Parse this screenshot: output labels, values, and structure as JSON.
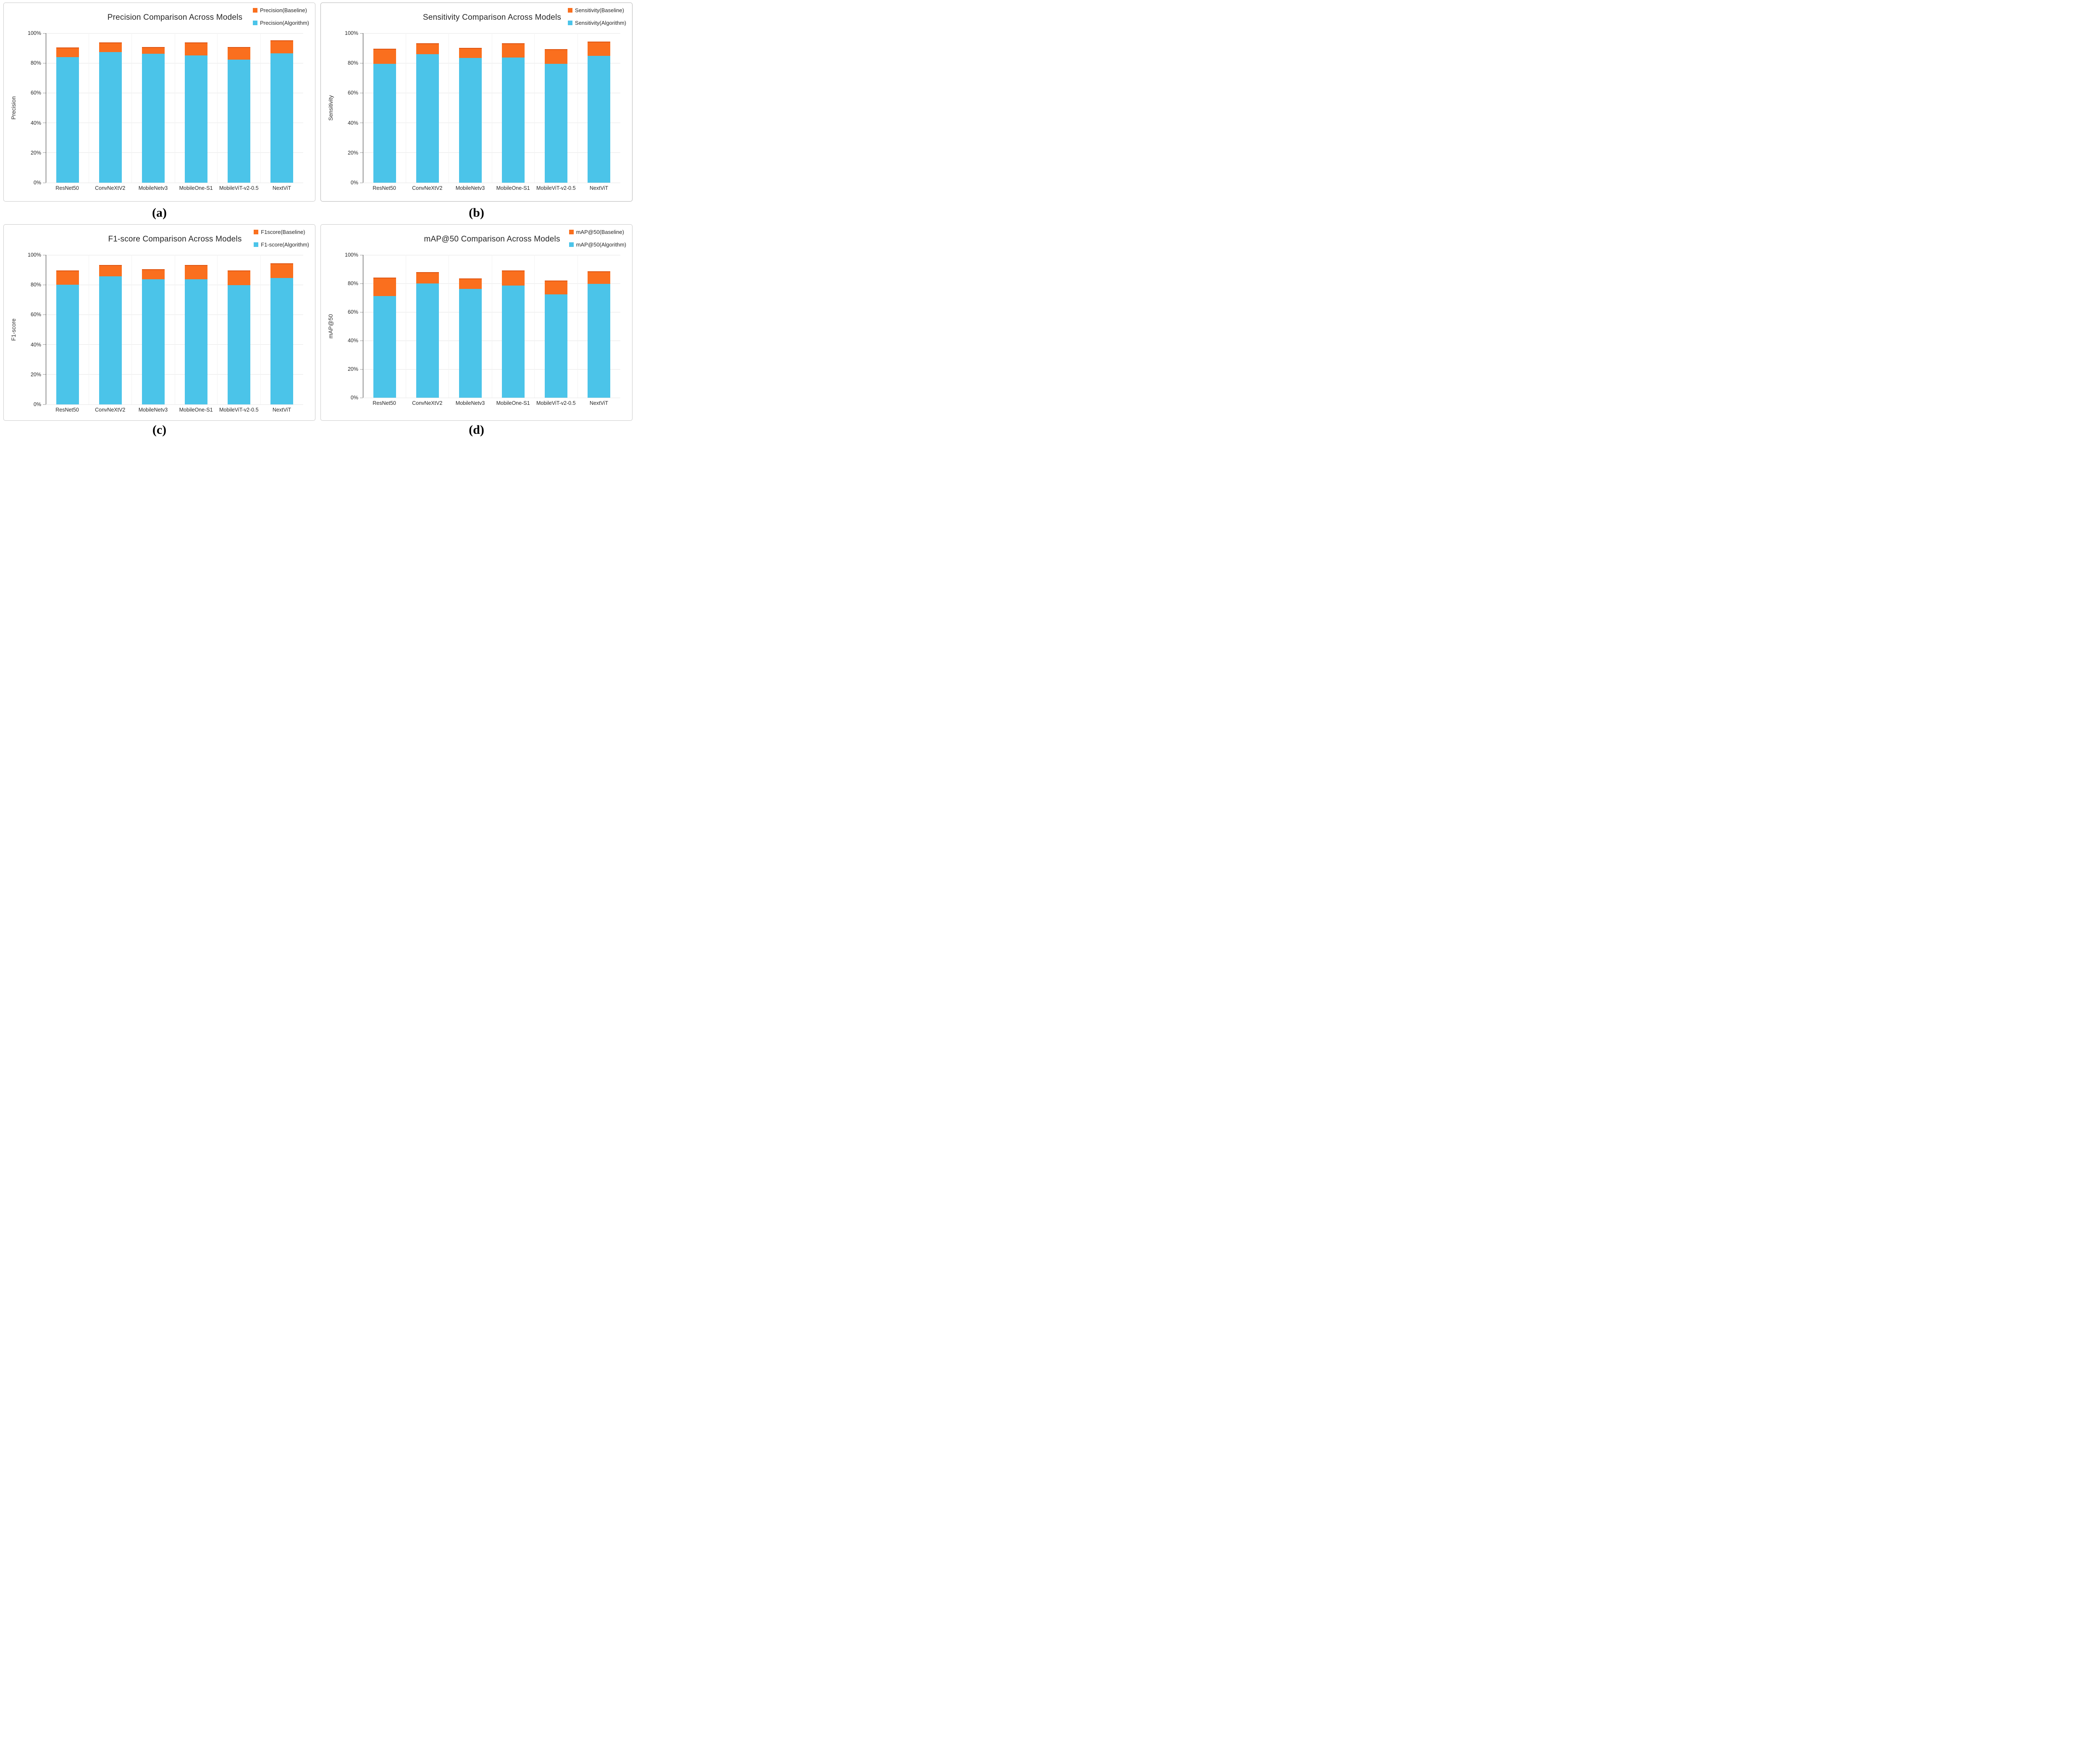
{
  "figure": {
    "background": "#ffffff",
    "grid_color": "#e6e6e6",
    "axis_color": "#2f2f2f",
    "baseline_color": "#fa6f1e",
    "algorithm_color": "#4bc4e9"
  },
  "chart_data": [
    {
      "type": "bar",
      "caption": "(a)",
      "title": "Precision Comparison Across Models",
      "xlabel": "",
      "ylabel": "Precision",
      "ylim": [
        0,
        100
      ],
      "y_tick_labels": [
        "0%",
        "20%",
        "40%",
        "60%",
        "80%",
        "100%"
      ],
      "grid": true,
      "legend_position": "top-right",
      "categories": [
        "ResNet50",
        "ConvNeXtV2",
        "MobileNetv3",
        "MobileOne-S1",
        "MobileViT-v2-0.5",
        "NextViT"
      ],
      "series": [
        {
          "name": "Precision(Baseline)",
          "color": "#fa6f1e",
          "values": [
            90.4,
            93.8,
            90.7,
            93.7,
            90.7,
            95.2
          ]
        },
        {
          "name": "Precision(Algorithm)",
          "color": "#4bc4e9",
          "values": [
            84.1,
            87.4,
            86.2,
            85.1,
            82.2,
            86.4
          ]
        }
      ]
    },
    {
      "type": "bar",
      "caption": "(b)",
      "title": "Sensitivity Comparison Across Models",
      "xlabel": "",
      "ylabel": "Sensitivity",
      "ylim": [
        0,
        100
      ],
      "y_tick_labels": [
        "0%",
        "20%",
        "40%",
        "60%",
        "80%",
        "100%"
      ],
      "grid": true,
      "legend_position": "top-right",
      "categories": [
        "ResNet50",
        "ConvNeXtV2",
        "MobileNetv3",
        "MobileOne-S1",
        "MobileViT-v2-0.5",
        "NextViT"
      ],
      "series": [
        {
          "name": "Sensitivity(Baseline)",
          "color": "#fa6f1e",
          "values": [
            89.6,
            93.4,
            90.2,
            93.3,
            89.3,
            94.5
          ]
        },
        {
          "name": "Sensitivity(Algorithm)",
          "color": "#4bc4e9",
          "values": [
            79.6,
            86.0,
            83.5,
            83.8,
            79.5,
            84.9
          ]
        }
      ]
    },
    {
      "type": "bar",
      "caption": "(c)",
      "title": "F1-score Comparison Across Models",
      "xlabel": "",
      "ylabel": "F1-score",
      "ylim": [
        0,
        100
      ],
      "y_tick_labels": [
        "0%",
        "20%",
        "40%",
        "60%",
        "80%",
        "100%"
      ],
      "grid": true,
      "legend_position": "top-right",
      "categories": [
        "ResNet50",
        "ConvNeXtV2",
        "MobileNetv3",
        "MobileOne-S1",
        "MobileViT-v2-0.5",
        "NextViT"
      ],
      "series": [
        {
          "name": "F1score(Baseline)",
          "color": "#fa6f1e",
          "values": [
            89.7,
            93.3,
            90.4,
            93.4,
            89.5,
            94.5
          ]
        },
        {
          "name": "F1-score(Algorithm)",
          "color": "#4bc4e9",
          "values": [
            80.0,
            85.6,
            83.7,
            83.8,
            79.9,
            84.6
          ]
        }
      ]
    },
    {
      "type": "bar",
      "caption": "(d)",
      "title": "mAP@50 Comparison Across Models",
      "xlabel": "",
      "ylabel": "mAP@50",
      "ylim": [
        0,
        100
      ],
      "y_tick_labels": [
        "0%",
        "20%",
        "40%",
        "60%",
        "80%",
        "100%"
      ],
      "grid": true,
      "legend_position": "top-right",
      "categories": [
        "ResNet50",
        "ConvNeXtV2",
        "MobileNetv3",
        "MobileOne-S1",
        "MobileViT-v2-0.5",
        "NextViT"
      ],
      "series": [
        {
          "name": "mAP@50(Baseline)",
          "color": "#fa6f1e",
          "values": [
            84.0,
            87.9,
            83.4,
            89.2,
            82.0,
            88.5
          ]
        },
        {
          "name": "mAP@50(Algorithm)",
          "color": "#4bc4e9",
          "values": [
            71.3,
            79.9,
            76.2,
            78.6,
            72.3,
            79.8
          ]
        }
      ]
    }
  ]
}
